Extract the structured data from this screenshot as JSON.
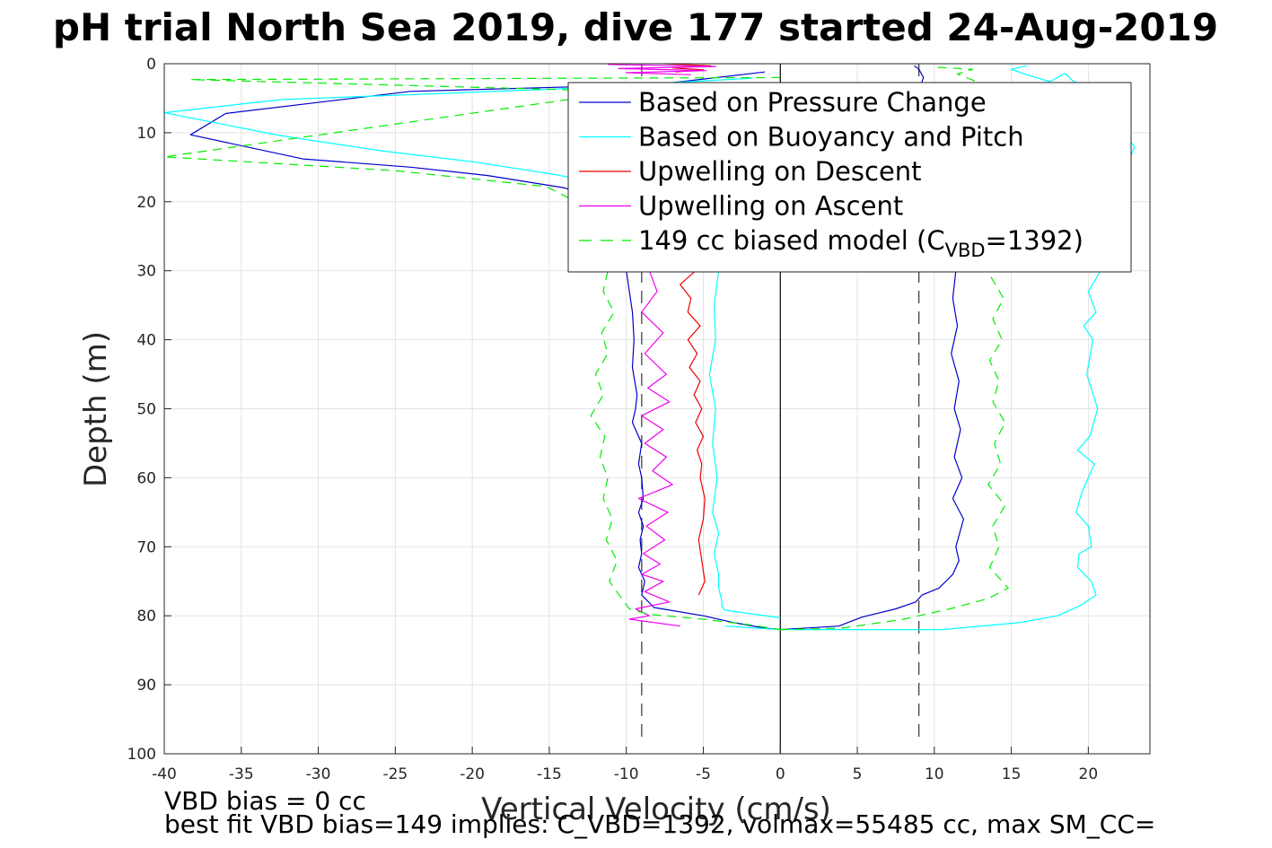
{
  "chart_data": {
    "type": "line",
    "title": "pH trial North Sea 2019, dive 177 started 24-Aug-2019",
    "xlabel": "Vertical Velocity (cm/s)",
    "ylabel": "Depth (m)",
    "xlim": [
      -40,
      24
    ],
    "ylim": [
      0,
      100
    ],
    "y_reversed": true,
    "grid": true,
    "x_ticks": [
      -40,
      -35,
      -30,
      -25,
      -20,
      -15,
      -10,
      -5,
      0,
      5,
      10,
      15,
      20
    ],
    "y_ticks": [
      0,
      10,
      20,
      30,
      40,
      50,
      60,
      70,
      80,
      90,
      100
    ],
    "legend": {
      "placement": "top-right",
      "entries": [
        {
          "series": "pressure_change_descent",
          "label": "Based on Pressure Change",
          "color": "#0000cc",
          "dash": "solid",
          "sub": "",
          "suffix": ""
        },
        {
          "series": "buoyancy_pitch_descent",
          "label": "Based on Buoyancy and Pitch",
          "color": "#00ffff",
          "dash": "solid",
          "sub": "",
          "suffix": ""
        },
        {
          "series": "upwelling_descent",
          "label": "Upwelling on Descent",
          "color": "#ee0000",
          "dash": "solid",
          "sub": "",
          "suffix": ""
        },
        {
          "series": "upwelling_ascent",
          "label": "Upwelling on Ascent",
          "color": "#ee00ee",
          "dash": "solid",
          "sub": "",
          "suffix": ""
        },
        {
          "series": "biased_model_descent",
          "label": "149 cc biased model (C",
          "color": "#00ee00",
          "dash": "dashed",
          "sub": "VBD",
          "suffix": "=1392)"
        }
      ]
    },
    "reference_lines": [
      {
        "x": 0,
        "color": "#000000",
        "dash": "solid"
      },
      {
        "x": -9,
        "color": "#333333",
        "dash": "dashed"
      },
      {
        "x": 9,
        "color": "#333333",
        "dash": "dashed"
      }
    ],
    "series": [
      {
        "id": "pressure_change_descent",
        "color": "#0000cc",
        "dash": "solid",
        "x": [
          -1,
          -8,
          -24,
          -36,
          -38.3,
          -31,
          -24,
          -19,
          -14,
          -11.5,
          -10.5,
          -10,
          -9.8,
          -9.6,
          -9.5,
          -9.6,
          -9.3,
          -9.4,
          -9.6,
          -9.0,
          -9.2,
          -9.0,
          -8.9,
          -9.2,
          -8.9,
          -9.1,
          -9.0,
          -9.2,
          -8.8,
          -9.0,
          -8.2,
          -5,
          -3,
          -1,
          0
        ],
        "y": [
          1.2,
          3,
          4,
          7.2,
          10.3,
          13.8,
          15,
          16.2,
          18,
          20,
          25,
          30,
          33,
          36,
          40,
          44,
          48,
          50,
          52,
          55,
          58,
          60,
          63,
          65,
          67,
          69,
          71,
          73,
          75,
          77,
          78.8,
          80,
          81,
          81.8,
          82
        ]
      },
      {
        "id": "pressure_change_ascent",
        "color": "#0000cc",
        "dash": "solid",
        "x": [
          0,
          3.8,
          5.3,
          7.5,
          8.8,
          9.2,
          10.3,
          11.2,
          11.6,
          11.4,
          11.9,
          11.2,
          11.8,
          11.3,
          11.7,
          11.3,
          11.6,
          11.1,
          11.5,
          11.2,
          11.4,
          10.9,
          10.3,
          9.7,
          8.8,
          9.3,
          9.0,
          8.7
        ],
        "y": [
          82,
          81.5,
          80.2,
          79,
          78,
          77,
          76,
          74,
          72,
          70,
          66,
          63,
          60,
          57,
          53,
          50,
          46,
          42,
          38,
          34,
          30,
          27,
          20,
          12,
          5,
          2,
          0.8,
          0.3
        ]
      },
      {
        "id": "buoyancy_pitch_descent",
        "color": "#00ffff",
        "dash": "solid",
        "x": [
          -1.8,
          -15,
          -32.4,
          -40,
          -32.5,
          -26,
          -20,
          -14.8,
          -10.5,
          -5.6,
          -4.0,
          -4.3,
          -4.2,
          -4.6,
          -4.2,
          -4.4,
          -4.1,
          -4.4,
          -4.0,
          -4.3,
          -4.0,
          -4.0,
          -3.8,
          -3.8,
          -3.6,
          0
        ],
        "y": [
          2.1,
          3.7,
          5.2,
          7.1,
          10.4,
          12.6,
          14.2,
          16,
          17.8,
          20,
          30,
          35,
          40,
          45,
          50,
          55,
          60,
          65,
          68,
          71,
          74,
          76,
          77.8,
          78.6,
          79.2,
          80.3
        ]
      },
      {
        "id": "buoyancy_pitch_ascent",
        "color": "#00ffff",
        "dash": "solid",
        "x": [
          -3.6,
          0,
          10.5,
          15.5,
          18,
          19.5,
          20.5,
          20.2,
          19.3,
          19.4,
          20.2,
          20.0,
          19.2,
          19.6,
          20.4,
          19.3,
          20.1,
          20.6,
          19.9,
          20.3,
          19.7,
          20.5,
          20.0,
          20.8,
          19.6,
          21.0,
          22,
          23,
          21.5,
          20.5,
          19,
          18.5,
          17.5,
          16,
          15,
          16
        ],
        "y": [
          81.5,
          82,
          82,
          81,
          80,
          78.5,
          77,
          75,
          73,
          71,
          70,
          67,
          65,
          62,
          58,
          56,
          54,
          50,
          45,
          40,
          38,
          36,
          33,
          30,
          28,
          25,
          18,
          12,
          8,
          4,
          2.5,
          1.4,
          2.6,
          1.6,
          0.8,
          0.3
        ]
      },
      {
        "id": "upwelling_descent",
        "color": "#ee0000",
        "dash": "solid",
        "x": [
          -4.5,
          -6.3,
          -5.2,
          -6.5,
          -5.5,
          -6.5,
          -5.8,
          -6.0,
          -5.2,
          -6.0,
          -5.4,
          -5.9,
          -5.2,
          -5.6,
          -5.1,
          -5.5,
          -5.0,
          -5.4,
          -5.1,
          -5.2,
          -4.9,
          -5.0,
          -5.3,
          -5.1,
          -4.9,
          -5.3
        ],
        "y": [
          17,
          20,
          23,
          26,
          30,
          32,
          34,
          36,
          38,
          40,
          42,
          44,
          46,
          48,
          50,
          52,
          54,
          56,
          58,
          60,
          63,
          66,
          69,
          72,
          75,
          77
        ]
      },
      {
        "id": "upwelling_descent_top",
        "color": "#ee0000",
        "dash": "solid",
        "x": [
          -7.5,
          -4.5,
          -7.0,
          -5.0,
          -6.8
        ],
        "y": [
          0,
          0.3,
          0.6,
          0.9,
          1.2
        ]
      },
      {
        "id": "upwelling_ascent",
        "color": "#ee00ee",
        "dash": "solid",
        "x": [
          -6.3,
          -9.5,
          -7.0,
          -10.2,
          -8.5,
          -8.0,
          -9.0,
          -7.6,
          -8.8,
          -7.4,
          -8.6,
          -7.2,
          -9.0,
          -7.6,
          -8.8,
          -7.4,
          -8.3,
          -7.0,
          -9.2,
          -7.3,
          -8.7,
          -7.5,
          -8.9,
          -7.8,
          -9.0,
          -7.6,
          -8.8,
          -7.2,
          -9.4,
          -8.5,
          -9.8,
          -6.5
        ],
        "y": [
          14,
          17,
          20,
          25,
          30,
          33,
          36,
          39,
          42,
          45,
          47,
          49,
          51,
          53,
          55,
          57,
          59,
          61,
          63,
          65,
          67,
          69,
          71,
          72.5,
          74,
          75,
          76.5,
          78,
          79,
          80,
          80.5,
          81.5
        ]
      },
      {
        "id": "upwelling_ascent_top",
        "color": "#ee00ee",
        "dash": "solid",
        "x": [
          -11.2,
          -4.2,
          -10.5,
          -4.8,
          -10.0,
          -5.8
        ],
        "y": [
          0.1,
          0.4,
          0.7,
          1.0,
          1.3,
          1.6
        ]
      },
      {
        "id": "biased_model_descent",
        "color": "#00ee00",
        "dash": "dashed",
        "x": [
          0,
          -38.3,
          -10,
          -40,
          -25,
          -15.2,
          -11.5,
          -10.7,
          -11.2,
          -11.5,
          -10.8,
          -11.6,
          -11.2,
          -12.0,
          -11.5,
          -12.3,
          -11.4,
          -11.7,
          -11.2,
          -11.5,
          -10.9,
          -11.3,
          -10.6,
          -11.1,
          -10.3,
          -9.8,
          -8.5,
          -5,
          -2,
          0
        ],
        "y": [
          2,
          2.3,
          4,
          13.5,
          15.5,
          17.8,
          22,
          26,
          30,
          33,
          36,
          39,
          42,
          45,
          48,
          51,
          54,
          57,
          60,
          63,
          66,
          69,
          72,
          75,
          77.5,
          79,
          79.8,
          80.5,
          81.3,
          82
        ]
      },
      {
        "id": "biased_model_ascent",
        "color": "#00ee00",
        "dash": "dashed",
        "x": [
          0,
          4,
          8,
          11,
          13.5,
          14.8,
          13.6,
          14.2,
          13.8,
          14.6,
          13.5,
          14.3,
          13.9,
          14.6,
          13.8,
          14.2,
          13.6,
          14.4,
          13.8,
          14.5,
          13.7,
          14.5,
          13.5,
          13.8,
          13.4,
          12.2,
          13.2,
          11.5,
          12.5,
          10
        ],
        "y": [
          82,
          81.8,
          80.5,
          79,
          77.5,
          76,
          73,
          70,
          67,
          64,
          61,
          58,
          55,
          52,
          49,
          46,
          43,
          40,
          37,
          34,
          31,
          28,
          23,
          16,
          10,
          6,
          3,
          1.5,
          0.8,
          0.5
        ]
      }
    ]
  },
  "footer": {
    "line1": "VBD bias = 0 cc",
    "line2": "best fit VBD bias=149 implies: C_VBD=1392, volmax=55485 cc, max SM_CC="
  }
}
